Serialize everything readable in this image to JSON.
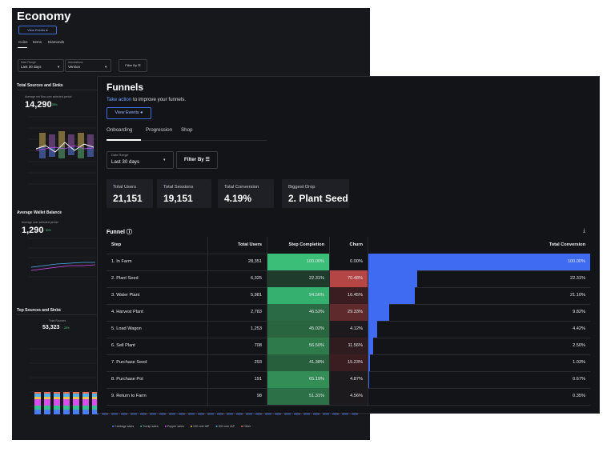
{
  "economy": {
    "title": "Economy",
    "view_events": "View Events ●",
    "tabs": [
      "Coins",
      "Items",
      "Diamonds"
    ],
    "date_range_label": "Date Range",
    "date_range_value": "Last 30 days",
    "annotations_label": "Annotations",
    "annotations_value": "Version",
    "filter_by": "Filter By",
    "total_sources_title": "Total Sources and Sinks",
    "avg_net_flow_label": "Average net flow over selected period",
    "avg_net_flow_value": "14,290",
    "avg_net_flow_change": "↑ 28%",
    "avg_wallet_title": "Average Wallet Balance",
    "avg_wallet_label": "Average over selected period",
    "avg_wallet_value": "1,290",
    "avg_wallet_change": "↑ 30%",
    "top_sources_title": "Top Sources and Sinks",
    "total_sources_label": "Total Sources",
    "total_sources_value": "53,323",
    "total_sources_change": "↑ 28%",
    "legend": [
      {
        "name": "Cabbage sales",
        "color": "#4b7bf5"
      },
      {
        "name": "Turnip sales",
        "color": "#31c48d"
      },
      {
        "name": "Pepper sales",
        "color": "#d84ef0"
      },
      {
        "name": "100 coin IAP",
        "color": "#f0c24b"
      },
      {
        "name": "300 coin IAP",
        "color": "#4fb3f0"
      },
      {
        "name": "Other",
        "color": "#f06b4b"
      }
    ]
  },
  "funnels": {
    "title": "Funnels",
    "take_action_link": "Take action",
    "take_action_rest": " to improve your funnels.",
    "view_events": "View Events ●",
    "tabs": [
      "Onboarding",
      "Progression",
      "Shop"
    ],
    "date_range_label": "Date Range",
    "date_range_value": "Last 30 days",
    "filter_by": "Filter By",
    "stats": [
      {
        "label": "Total Users",
        "value": "21,151"
      },
      {
        "label": "Total Sessions",
        "value": "19,151"
      },
      {
        "label": "Total Conversion",
        "value": "4.19%"
      },
      {
        "label": "Biggest Drop",
        "value": "2. Plant Seed"
      }
    ],
    "funnel_heading": "Funnel ⓘ",
    "download_icon": "download-icon",
    "columns": [
      "Step",
      "Total Users",
      "Step Completion",
      "Churn",
      "Total Conversion"
    ],
    "rows": [
      {
        "step": "1. In Farm",
        "users": "28,351",
        "completion": "100.00%",
        "churn": "0.00%",
        "conversion": "100.00%",
        "conv_value": 100.0,
        "comp_color": "#3bbf78",
        "churn_color": "#131418"
      },
      {
        "step": "2. Plant Seed",
        "users": "6,325",
        "completion": "22.31%",
        "churn": "70.48%",
        "conversion": "22.31%",
        "conv_value": 22.31,
        "comp_color": "#1e3b2b",
        "churn_color": "#b54646"
      },
      {
        "step": "3. Water Plant",
        "users": "5,981",
        "completion": "94.56%",
        "churn": "16.45%",
        "conversion": "21.10%",
        "conv_value": 21.1,
        "comp_color": "#36b06e",
        "churn_color": "#3a1d20"
      },
      {
        "step": "4. Harvest Plant",
        "users": "2,783",
        "completion": "46.53%",
        "churn": "29.33%",
        "conversion": "9.82%",
        "conv_value": 9.82,
        "comp_color": "#2a6a45",
        "churn_color": "#5e2a2c"
      },
      {
        "step": "5. Load Wagon",
        "users": "1,253",
        "completion": "45.02%",
        "churn": "4.12%",
        "conversion": "4.42%",
        "conv_value": 4.42,
        "comp_color": "#29663f",
        "churn_color": "#1d1a1d"
      },
      {
        "step": "6. Sell Plant",
        "users": "708",
        "completion": "56.50%",
        "churn": "11.56%",
        "conversion": "2.50%",
        "conv_value": 2.5,
        "comp_color": "#2e7a4b",
        "churn_color": "#2e1c1e"
      },
      {
        "step": "7. Purchase Seed",
        "users": "293",
        "completion": "41.38%",
        "churn": "15.23%",
        "conversion": "1.03%",
        "conv_value": 1.03,
        "comp_color": "#275f3c",
        "churn_color": "#3a1d20"
      },
      {
        "step": "8. Purchase Pot",
        "users": "191",
        "completion": "65.19%",
        "churn": "4.87%",
        "conversion": "0.67%",
        "conv_value": 0.67,
        "comp_color": "#338d56",
        "churn_color": "#1d1a1d"
      },
      {
        "step": "9. Return to Farm",
        "users": "98",
        "completion": "51.31%",
        "churn": "4.56%",
        "conversion": "0.35%",
        "conv_value": 0.35,
        "comp_color": "#2b7046",
        "churn_color": "#1d1a1d"
      }
    ]
  }
}
